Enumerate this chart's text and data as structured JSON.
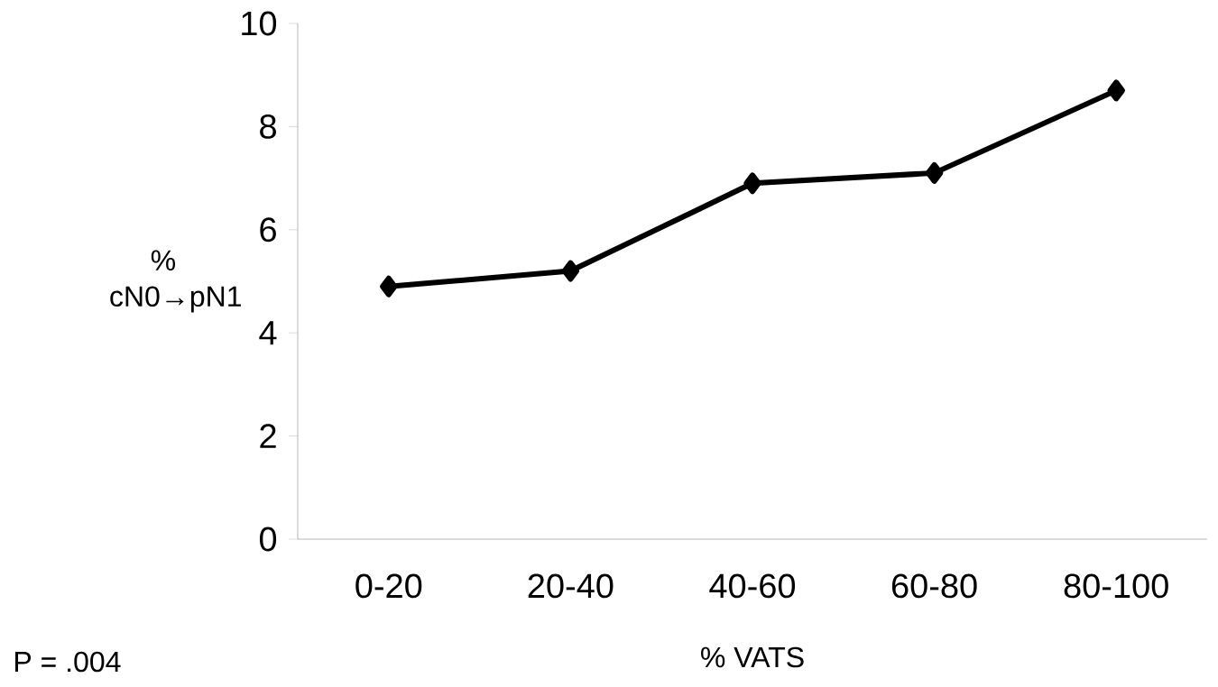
{
  "chart_data": {
    "type": "line",
    "categories": [
      "0-20",
      "20-40",
      "40-60",
      "60-80",
      "80-100"
    ],
    "values": [
      4.9,
      5.2,
      6.9,
      7.1,
      8.7
    ],
    "color": "#000000",
    "xlabel": "% VATS",
    "ylabel": "% cN0→pN1",
    "ylim": [
      0,
      10
    ],
    "yticks": [
      0,
      2,
      4,
      6,
      8,
      10
    ],
    "marker": "diamond",
    "line_style": "solid",
    "grid": false,
    "annotations": [
      "P = .004"
    ]
  }
}
